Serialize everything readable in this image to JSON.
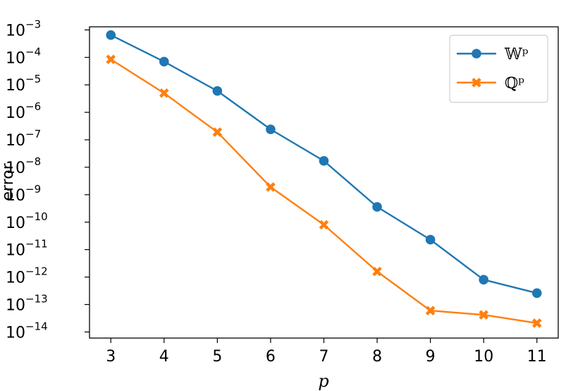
{
  "chart_data": {
    "type": "line",
    "xlabel": "p",
    "ylabel": "error",
    "x": [
      3,
      4,
      5,
      6,
      7,
      8,
      9,
      10,
      11
    ],
    "x_ticks": [
      "3",
      "4",
      "5",
      "6",
      "7",
      "8",
      "9",
      "10",
      "11"
    ],
    "xlim": [
      2.6,
      11.4
    ],
    "yscale": "log",
    "ylim": [
      6e-15,
      0.0013
    ],
    "y_ticks": [
      {
        "base": "10",
        "exp": "−3"
      },
      {
        "base": "10",
        "exp": "−4"
      },
      {
        "base": "10",
        "exp": "−5"
      },
      {
        "base": "10",
        "exp": "−6"
      },
      {
        "base": "10",
        "exp": "−7"
      },
      {
        "base": "10",
        "exp": "−8"
      },
      {
        "base": "10",
        "exp": "−9"
      },
      {
        "base": "10",
        "exp": "−10"
      },
      {
        "base": "10",
        "exp": "−11"
      },
      {
        "base": "10",
        "exp": "−12"
      },
      {
        "base": "10",
        "exp": "−13"
      },
      {
        "base": "10",
        "exp": "−14"
      }
    ],
    "grid": false,
    "legend_position": "top-right",
    "series": [
      {
        "name": "𝕎ᵖ",
        "color": "#1f77b4",
        "marker": "circle",
        "values": [
          0.00065,
          7e-05,
          6e-06,
          2.4e-07,
          1.7e-08,
          3.6e-10,
          2.3e-11,
          8e-13,
          2.6e-13
        ]
      },
      {
        "name": "ℚᵖ",
        "color": "#ff7f0e",
        "marker": "x",
        "values": [
          8.5e-05,
          5e-06,
          1.9e-07,
          1.9e-09,
          8e-11,
          1.6e-12,
          6e-14,
          4.2e-14,
          2.1e-14
        ]
      }
    ]
  }
}
